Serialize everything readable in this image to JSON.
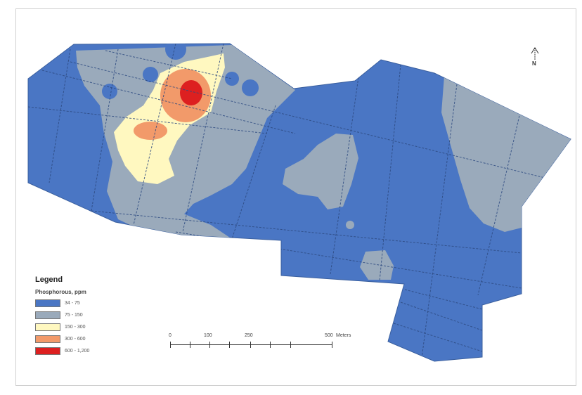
{
  "map": {
    "legend": {
      "title": "Legend",
      "field": "Phosphorous, ppm",
      "classes": [
        {
          "label": "34 - 75",
          "color": "#4a76c4"
        },
        {
          "label": "75 - 150",
          "color": "#9aaabb"
        },
        {
          "label": "150 - 300",
          "color": "#fff8c0"
        },
        {
          "label": "300 - 600",
          "color": "#f29a6a"
        },
        {
          "label": "600 - 1,200",
          "color": "#dd2020"
        }
      ]
    },
    "scale": {
      "labels": [
        "0",
        "100",
        "250",
        "500"
      ],
      "unit": "Meters"
    },
    "north": {
      "letter": "N",
      "icon": "north-arrow-icon"
    }
  }
}
